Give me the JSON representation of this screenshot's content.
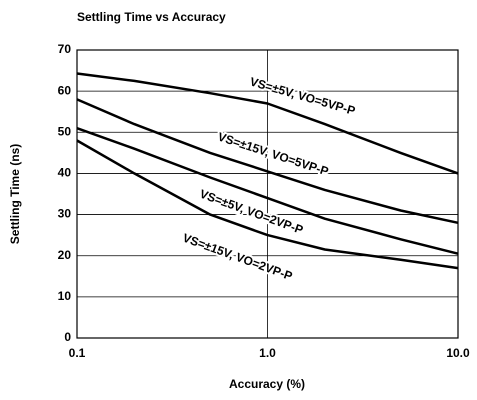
{
  "chart_data": {
    "type": "line",
    "title": "Settling Time vs Accuracy",
    "x_label": "Accuracy (%)",
    "y_label": "Settling Time (ns)",
    "x": [
      0.1,
      0.2,
      0.5,
      1,
      2,
      5,
      10
    ],
    "series": [
      {
        "name": "VS=±5V, VO=5VP-P",
        "color": "#000000",
        "values": [
          64.3,
          62.5,
          59.5,
          57,
          52,
          45,
          40
        ]
      },
      {
        "name": "VS=±15V, VO=5VP-P",
        "color": "#000000",
        "values": [
          58,
          52,
          45,
          40.5,
          36,
          31,
          28
        ]
      },
      {
        "name": "VS=±5V, VO=2VP-P",
        "color": "#000000",
        "values": [
          51,
          46,
          39,
          34,
          29,
          24,
          20.5
        ]
      },
      {
        "name": "VS=±15V, VO=2VP-P",
        "color": "#000000",
        "values": [
          48,
          40,
          30,
          25,
          21.5,
          19,
          17
        ]
      }
    ],
    "xlim": [
      0.1,
      10
    ],
    "xticks": [
      0.1,
      {
        "value": 1,
        "label": "1.0"
      },
      {
        "value": 10,
        "label": "10.0"
      }
    ],
    "xscale": "log",
    "ylim": [
      0,
      70
    ],
    "yticks": [
      0,
      10,
      20,
      30,
      40,
      50,
      60,
      70
    ],
    "grid": true
  }
}
